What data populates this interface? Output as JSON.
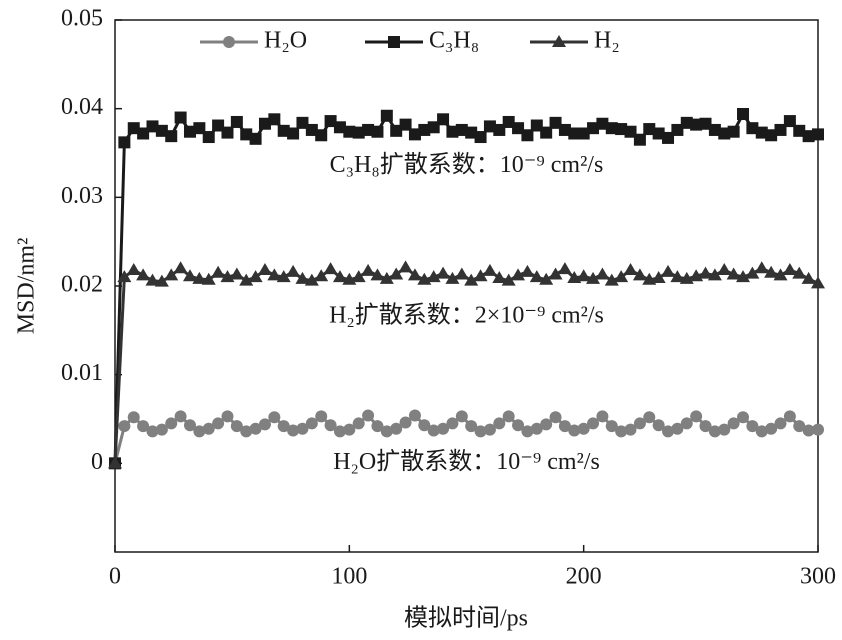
{
  "chart_data": {
    "type": "line",
    "xlabel": "模拟时间/ps",
    "ylabel": "MSD/nm²",
    "xlim": [
      0,
      300
    ],
    "xticks": [
      0,
      100,
      200,
      300
    ],
    "ylim": [
      -0.01,
      0.05
    ],
    "yticks": [
      0,
      0.01,
      0.02,
      0.03,
      0.04,
      0.05
    ],
    "legend": "top",
    "annotations": [
      {
        "text": "C₃H₈扩散系数：10⁻⁹ cm²/s",
        "x": 150,
        "y": 0.0335
      },
      {
        "text": "H₂扩散系数：2×10⁻⁹ cm²/s",
        "x": 150,
        "y": 0.0165
      },
      {
        "text": "H₂O扩散系数：10⁻⁹ cm²/s",
        "x": 150,
        "y": 0.0
      }
    ],
    "x": [
      0,
      4,
      8,
      12,
      16,
      20,
      24,
      28,
      32,
      36,
      40,
      44,
      48,
      52,
      56,
      60,
      64,
      68,
      72,
      76,
      80,
      84,
      88,
      92,
      96,
      100,
      104,
      108,
      112,
      116,
      120,
      124,
      128,
      132,
      136,
      140,
      144,
      148,
      152,
      156,
      160,
      164,
      168,
      172,
      176,
      180,
      184,
      188,
      192,
      196,
      200,
      204,
      208,
      212,
      216,
      220,
      224,
      228,
      232,
      236,
      240,
      244,
      248,
      252,
      256,
      260,
      264,
      268,
      272,
      276,
      280,
      284,
      288,
      292,
      296,
      300
    ],
    "series": [
      {
        "name": "H₂O",
        "color": "#808080",
        "marker": "circle",
        "values": [
          0,
          0.0042,
          0.0052,
          0.0042,
          0.0036,
          0.0038,
          0.0045,
          0.0053,
          0.0043,
          0.0036,
          0.0039,
          0.0045,
          0.0053,
          0.0042,
          0.0036,
          0.0039,
          0.0044,
          0.0052,
          0.0042,
          0.0037,
          0.0039,
          0.0045,
          0.0053,
          0.0043,
          0.0036,
          0.0038,
          0.0045,
          0.0054,
          0.0042,
          0.0036,
          0.0039,
          0.0046,
          0.0054,
          0.0043,
          0.0037,
          0.0039,
          0.0045,
          0.0053,
          0.0042,
          0.0036,
          0.0038,
          0.0045,
          0.0053,
          0.0043,
          0.0036,
          0.0039,
          0.0044,
          0.0052,
          0.0042,
          0.0037,
          0.0039,
          0.0045,
          0.0053,
          0.0042,
          0.0036,
          0.0038,
          0.0045,
          0.0052,
          0.0043,
          0.0036,
          0.0039,
          0.0045,
          0.0053,
          0.0042,
          0.0036,
          0.0038,
          0.0045,
          0.0052,
          0.0042,
          0.0036,
          0.0039,
          0.0045,
          0.0053,
          0.0042,
          0.0037,
          0.0038
        ]
      },
      {
        "name": "C₃H₈",
        "color": "#1a1a1a",
        "marker": "square",
        "values": [
          0,
          0.0362,
          0.0378,
          0.0372,
          0.038,
          0.0375,
          0.0369,
          0.039,
          0.0374,
          0.0378,
          0.0368,
          0.0381,
          0.0373,
          0.0385,
          0.0371,
          0.0366,
          0.0383,
          0.0388,
          0.0375,
          0.0372,
          0.0384,
          0.0376,
          0.037,
          0.0386,
          0.0379,
          0.0374,
          0.0373,
          0.0376,
          0.0374,
          0.0392,
          0.0375,
          0.0382,
          0.0371,
          0.0376,
          0.0379,
          0.0388,
          0.0374,
          0.0376,
          0.0373,
          0.0368,
          0.038,
          0.0376,
          0.0385,
          0.0378,
          0.037,
          0.0381,
          0.0373,
          0.0384,
          0.0376,
          0.0372,
          0.0372,
          0.0378,
          0.0383,
          0.0378,
          0.0377,
          0.0374,
          0.0365,
          0.0377,
          0.0372,
          0.0367,
          0.0376,
          0.0384,
          0.0382,
          0.0383,
          0.0376,
          0.0372,
          0.0374,
          0.0394,
          0.0378,
          0.0373,
          0.037,
          0.0376,
          0.0386,
          0.0375,
          0.0369,
          0.0371
        ]
      },
      {
        "name": "H₂",
        "color": "#333333",
        "marker": "triangle",
        "values": [
          0,
          0.021,
          0.0218,
          0.0212,
          0.0206,
          0.0205,
          0.0212,
          0.022,
          0.0211,
          0.0208,
          0.0207,
          0.0215,
          0.021,
          0.0213,
          0.0206,
          0.021,
          0.0218,
          0.0212,
          0.021,
          0.0216,
          0.0208,
          0.0206,
          0.0211,
          0.0219,
          0.021,
          0.0207,
          0.021,
          0.0217,
          0.0212,
          0.0208,
          0.0213,
          0.0221,
          0.0212,
          0.0207,
          0.021,
          0.0214,
          0.0208,
          0.0213,
          0.0206,
          0.0211,
          0.0217,
          0.0209,
          0.0206,
          0.0212,
          0.0216,
          0.021,
          0.0207,
          0.0213,
          0.0219,
          0.0209,
          0.0211,
          0.0208,
          0.0213,
          0.0206,
          0.021,
          0.0218,
          0.0212,
          0.0207,
          0.0209,
          0.0216,
          0.021,
          0.0208,
          0.0211,
          0.0214,
          0.0212,
          0.0218,
          0.0213,
          0.021,
          0.0214,
          0.022,
          0.0215,
          0.0212,
          0.0218,
          0.0214,
          0.0208,
          0.0203
        ]
      }
    ]
  }
}
